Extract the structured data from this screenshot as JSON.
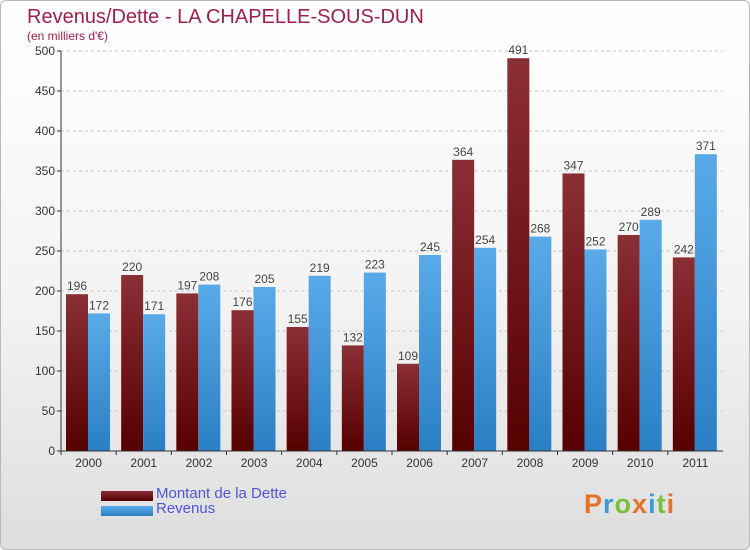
{
  "title": "Revenus/Dette - LA CHAPELLE-SOUS-DUN",
  "subtitle": "(en milliers d'€)",
  "logo": {
    "text": "Proxiti",
    "letters": [
      {
        "ch": "P",
        "color": "#e8712a"
      },
      {
        "ch": "r",
        "color": "#3a9bd9"
      },
      {
        "ch": "o",
        "color": "#7cbf3a"
      },
      {
        "ch": "x",
        "color": "#e8712a"
      },
      {
        "ch": "i",
        "color": "#3a9bd9"
      },
      {
        "ch": "t",
        "color": "#7cbf3a"
      },
      {
        "ch": "i",
        "color": "#e8712a"
      }
    ]
  },
  "colors": {
    "debt_top": "#8b2f36",
    "debt_bottom": "#560000",
    "revenue_top": "#5aaae8",
    "revenue_bottom": "#2a7fc4",
    "title": "#a0204a"
  },
  "chart_data": {
    "type": "bar",
    "categories": [
      "2000",
      "2001",
      "2002",
      "2003",
      "2004",
      "2005",
      "2006",
      "2007",
      "2008",
      "2009",
      "2010",
      "2011"
    ],
    "series": [
      {
        "name": "Montant de la Dette",
        "values": [
          196,
          220,
          197,
          176,
          155,
          132,
          109,
          364,
          491,
          347,
          270,
          242
        ]
      },
      {
        "name": "Revenus",
        "values": [
          172,
          171,
          208,
          205,
          219,
          223,
          245,
          254,
          268,
          252,
          289,
          371
        ]
      }
    ],
    "ylim": [
      0,
      500
    ],
    "yticks": [
      0,
      50,
      100,
      150,
      200,
      250,
      300,
      350,
      400,
      450,
      500
    ],
    "grid": true,
    "legend_position": "bottom-left",
    "xlabel": "",
    "ylabel": ""
  }
}
